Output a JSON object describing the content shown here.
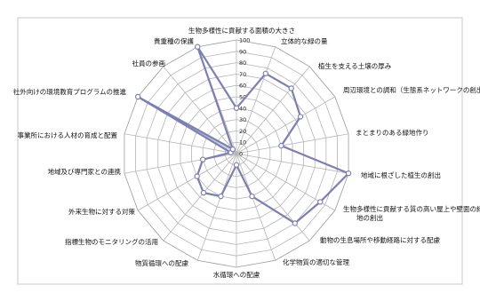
{
  "chart_data": {
    "type": "radar",
    "title": "",
    "categories": [
      "生物多様性に貢献する面積の大きさ",
      "立体的な緑の量",
      "植生を支える土壌の厚み",
      "周辺環境との調和（生態系ネットワークの創出）",
      "まとまりのある緑地作り",
      "地域に根ざした植生の創出",
      "生物多様性に貢献する質の高い屋上や壁面の緑地の創出",
      "動物の生息場所や移動経路に対する配慮",
      "化学物質の適切な管理",
      "水循環への配慮",
      "物質循環への配慮",
      "指標生物のモニタリングの活用",
      "外来生物に対する対策",
      "地域及び専門家との連携",
      "事業所における人材の育成と配置",
      "社外向けの環境教育プログラムの推進",
      "社員の参画",
      "貴重種の保護"
    ],
    "series": [
      {
        "name": "",
        "color": "#7c7fb6",
        "values": [
          40,
          75,
          75,
          65,
          40,
          100,
          85,
          80,
          40,
          10,
          40,
          45,
          40,
          30,
          5,
          100,
          5,
          100
        ]
      }
    ],
    "rlim": [
      0,
      100
    ],
    "ticks": [
      "0",
      "10",
      "20",
      "30",
      "40",
      "50",
      "60",
      "70",
      "80",
      "90",
      "100"
    ],
    "grid": true,
    "legend": "none"
  }
}
